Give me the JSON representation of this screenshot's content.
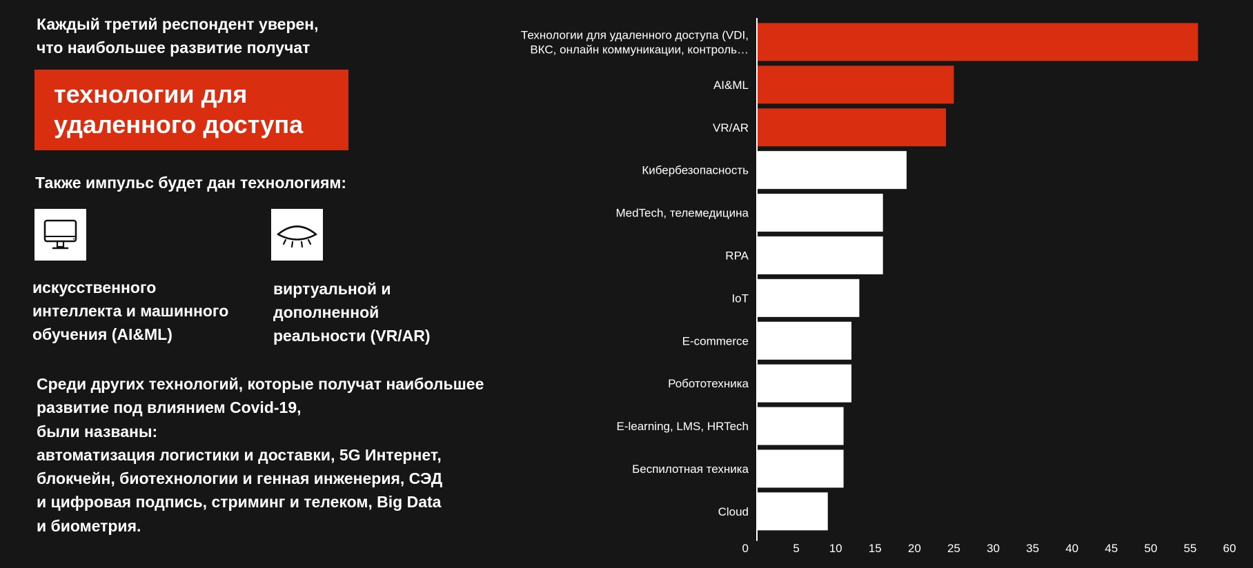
{
  "left_panel": {
    "headline_lines": [
      "Каждый третий респондент уверен,",
      "что наибольшее развитие получат"
    ],
    "highlight_lines": [
      "технологии для",
      "удаленного доступа"
    ],
    "also_heading": "Также импульс будет дан технологиям:",
    "technologies": [
      {
        "icon": "monitor-icon",
        "caption_lines": [
          "искусственного",
          "интеллекта и машинного",
          "обучения (AI&ML)"
        ]
      },
      {
        "icon": "eye-icon",
        "caption_lines": [
          "виртуальной и",
          "дополненной",
          "реальности (VR/AR)"
        ]
      }
    ],
    "other_lines": [
      "Среди других технологий, которые получат наибольшее",
      "развитие под влиянием Covid-19,",
      "были названы:",
      "автоматизация логистики и доставки, 5G Интернет,",
      "блокчейн, биотехнологии и генная инженерия, СЭД",
      "и цифровая подпись, стриминг и телеком, Big Data",
      "и биометрия."
    ]
  },
  "colors": {
    "background": "#161616",
    "accent": "#d92e10",
    "bar_default": "#ffffff",
    "text": "#ffffff"
  },
  "chart_data": {
    "type": "bar",
    "orientation": "horizontal",
    "categories": [
      [
        "Технологии для удаленного доступа (VDI,",
        "ВКС, онлайн коммуникации, контроль…"
      ],
      [
        "AI&ML"
      ],
      [
        "VR/AR"
      ],
      [
        "Кибербезопасность"
      ],
      [
        "MedTech, телемедицина"
      ],
      [
        "RPA"
      ],
      [
        "IoT"
      ],
      [
        "E-commerce"
      ],
      [
        "Робототехника"
      ],
      [
        "E-learning, LMS, HRTech"
      ],
      [
        "Беспилотная техника"
      ],
      [
        "Cloud"
      ]
    ],
    "values": [
      56,
      25,
      24,
      19,
      16,
      16,
      13,
      12,
      12,
      11,
      11,
      9
    ],
    "highlighted": [
      true,
      true,
      true,
      false,
      false,
      false,
      false,
      false,
      false,
      false,
      false,
      false
    ],
    "xlim": [
      0,
      60
    ],
    "xticks": [
      0,
      5,
      10,
      15,
      20,
      25,
      30,
      35,
      40,
      45,
      50,
      55,
      60
    ],
    "grid": false,
    "legend": "none"
  }
}
